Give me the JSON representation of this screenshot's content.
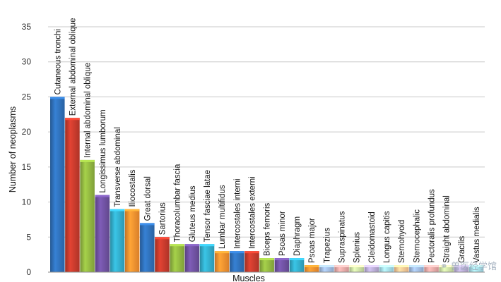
{
  "chart_data": {
    "type": "bar",
    "xlabel": "Muscles",
    "ylabel": "Number of neoplasms",
    "ylim": [
      0,
      35
    ],
    "yticks": [
      "0",
      "5",
      "10",
      "15",
      "20",
      "25",
      "30",
      "35"
    ],
    "grid": true,
    "categories": [
      "Cutaneous tronchi",
      "External abdominal oblique",
      "Internal abdominal oblique",
      "Longissimus lumborum",
      "Transverse abdominal",
      "Iliocostalis",
      "Great dorsal",
      "Sartorius",
      "Thoracolumbar fascia",
      "Gluteus medius",
      "Tensor fasciae latae",
      "Lumbar multifidus",
      "Intercostales interni",
      "Intercostales externi",
      "Biceps femoris",
      "Psoas minor",
      "Diaphragm",
      "Psoas major",
      "Trapezius",
      "Supraspinatus",
      "Splenius",
      "Cleidomastoid",
      "Longus capitis",
      "Sternohyoid",
      "Sternocephalic",
      "Pectoralis profundus",
      "Straight abdominal",
      "Gracilis",
      "Vastus medialis"
    ],
    "values": [
      25,
      22,
      16,
      11,
      9,
      9,
      7,
      5,
      4,
      4,
      4,
      3,
      3,
      3,
      2,
      2,
      2,
      1,
      1,
      1,
      1,
      1,
      1,
      1,
      1,
      1,
      1,
      1,
      1
    ],
    "colors": [
      "#2e6db4",
      "#c0392b",
      "#8db13f",
      "#6c4f9c",
      "#31a7c4",
      "#f08c2e",
      "#2e6db4",
      "#c0392b",
      "#8db13f",
      "#6c4f9c",
      "#31a7c4",
      "#f08c2e",
      "#2e6db4",
      "#c0392b",
      "#8db13f",
      "#6c4f9c",
      "#31a7c4",
      "#f08c2e",
      "#9bb5d8",
      "#e3a3a1",
      "#c6d9a0",
      "#b4a7cf",
      "#9fd4e3",
      "#f6c08f",
      "#9bb5d8",
      "#e3a3a1",
      "#c6d9a0",
      "#b4a7cf",
      "#9fd4e3"
    ]
  },
  "watermark": "⚭ 兽医经学馆"
}
